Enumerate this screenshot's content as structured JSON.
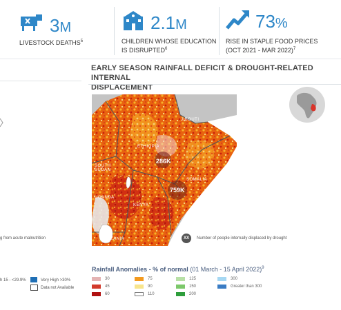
{
  "stats": [
    {
      "icon": "cow-icon",
      "value": "3",
      "unit": "M",
      "label": "LIVESTOCK DEATHS",
      "note": "5"
    },
    {
      "icon": "school-icon",
      "value": "2.1",
      "unit": "M",
      "label_line1": "CHILDREN WHOSE EDUCATION",
      "label_line2": "IS DISRUPTED",
      "note": "6"
    },
    {
      "icon": "trend-up-icon",
      "value": "73",
      "unit": "%",
      "label_line1": "RISE IN STAPLE FOOD PRICES",
      "label_line2": "(OCT 2021 - MAR 2022)",
      "note": "7"
    }
  ],
  "map": {
    "title_line1": "EARLY SEASON RAINFALL DEFICIT & DROUGHT-RELATED INTERNAL",
    "title_line2": "DISPLACEMENT",
    "country_labels": {
      "djibouti": "JIBOUTI",
      "ethiopia": "ETHIOPIA",
      "south_sudan_1": "SOUTH",
      "south_sudan_2": "SUDAN",
      "somalia": "SOMALIA",
      "uganda": "UGANDA",
      "kenya": "KENYA",
      "tanzania": "TANZANIA"
    },
    "idp_points": [
      {
        "label": "286K"
      },
      {
        "label": "759K"
      }
    ],
    "idp_legend_symbol": "XX",
    "idp_legend_text": "Number of people internally displaced by drought"
  },
  "rainfall_legend": {
    "title": "Rainfall Anomalies - % of normal",
    "period": "(01 March - 15 April  2022)",
    "note": "9",
    "items": [
      {
        "label": "30",
        "color": "#e4b3b3"
      },
      {
        "label": "45",
        "color": "#d23a2c"
      },
      {
        "label": "60",
        "color": "#b01010"
      },
      {
        "label": "75",
        "color": "#f39a1f"
      },
      {
        "label": "90",
        "color": "#f8e58c"
      },
      {
        "label": "110",
        "color": "#ffffff"
      },
      {
        "label": "125",
        "color": "#b8e0a6"
      },
      {
        "label": "150",
        "color": "#7cc86a"
      },
      {
        "label": "200",
        "color": "#2e9e3c"
      },
      {
        "label": "300",
        "color": "#a6d8f3"
      },
      {
        "label": "Greater than 300",
        "color": "#3a7cc4"
      }
    ]
  },
  "left_panel": {
    "caption": "g from acute malnutrition",
    "legend_a": "h 15 - <29.9%",
    "legend_b": "Very High >30%",
    "legend_c": "Data not Available",
    "legend_b_color": "#1f6fb5"
  }
}
